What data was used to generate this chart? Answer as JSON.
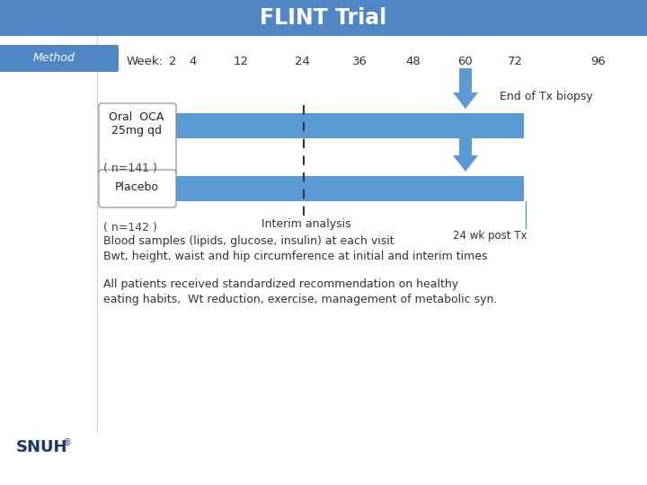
{
  "title": "FLINT Trial",
  "title_bg_color": "#4F86C6",
  "title_text_color": "#FFFFFF",
  "method_label": "Method",
  "weeks": [
    2,
    4,
    12,
    24,
    36,
    48,
    60,
    72,
    96
  ],
  "bar_color": "#5B9BD5",
  "row1_label_line1": "Oral  OCA",
  "row1_label_line2": "25mg qd",
  "row1_label_line3": "( n=141 )",
  "row2_label_line1": "Placebo",
  "row2_label_line2": "( n=142 )",
  "end_tx_label": "End of Tx biopsy",
  "post_tx_label": "24 wk post Tx",
  "interim_label": "Interim analysis",
  "text1_line1": "Blood samples (lipids, glucose, insulin) at each visit",
  "text1_line2": "Bwt, height, waist and hip circumference at initial and interim times",
  "text2_line1": "All patients received standardized recommendation on healthy",
  "text2_line2": "eating habits,  Wt reduction, exercise, management of metabolic syn.",
  "snuh_label": "SNUH",
  "bg_color": "#FFFFFF",
  "left_line_color": "#AAAACC",
  "header_color": "#4F86C6",
  "method_banner_color": "#4F86C6"
}
